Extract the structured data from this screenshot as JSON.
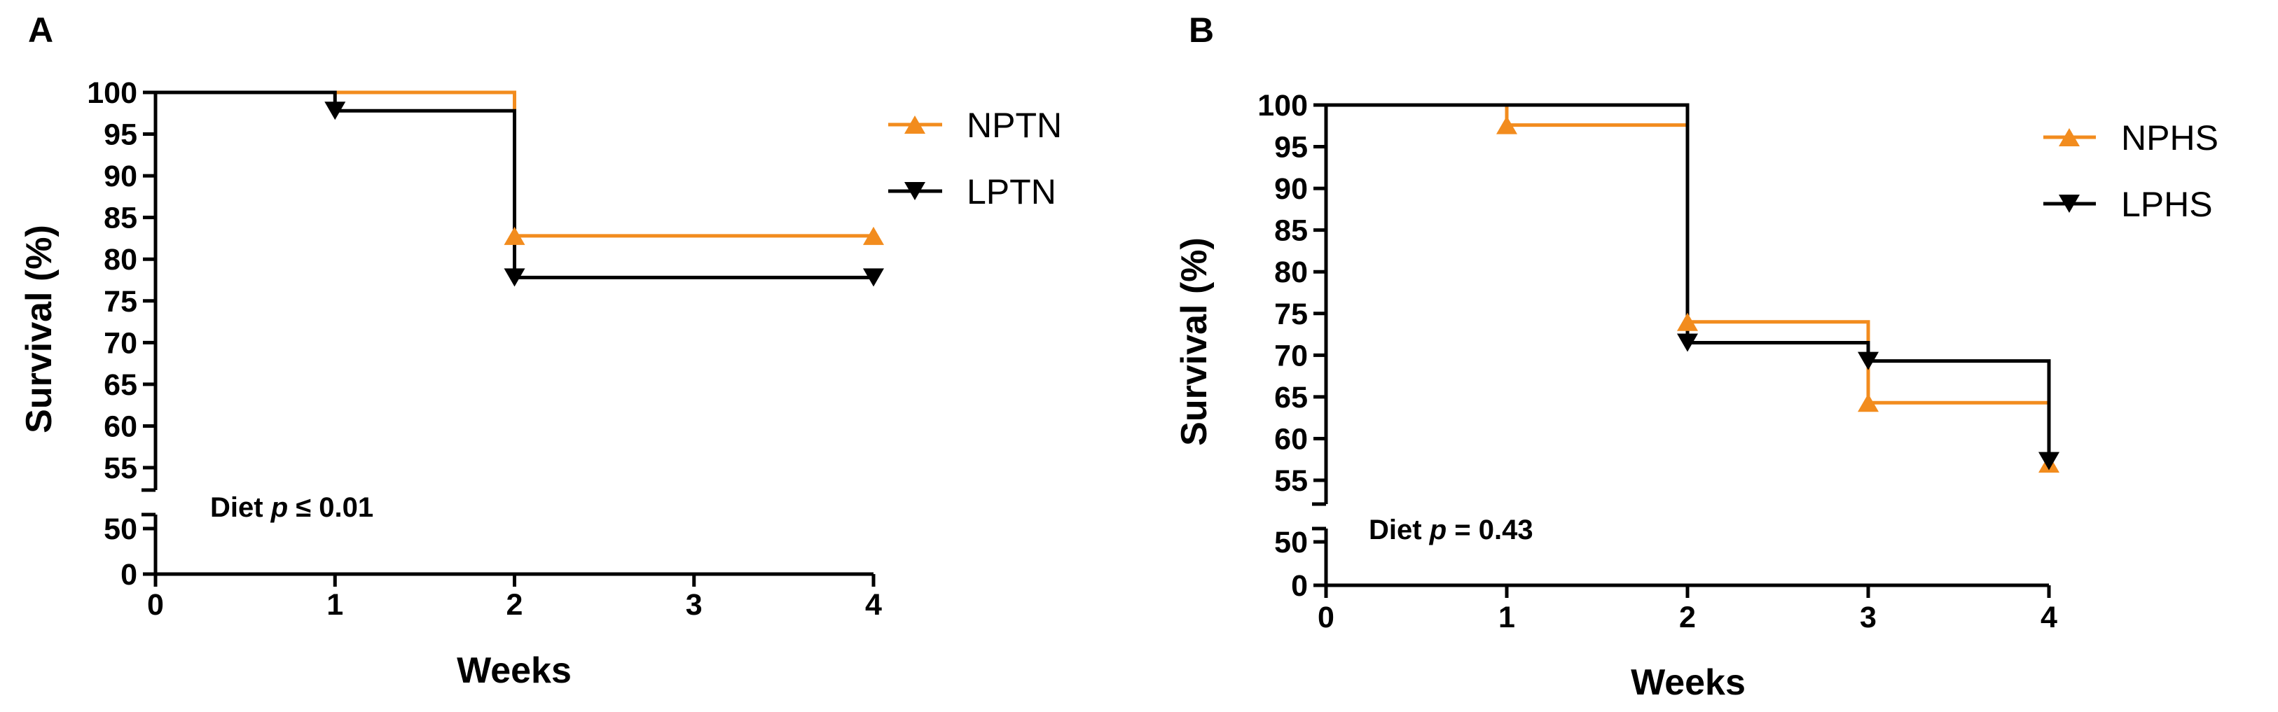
{
  "chart_data": [
    {
      "type": "line",
      "subtype": "kaplan-meier-step",
      "panel_label": "A",
      "xlabel": "Weeks",
      "ylabel": "Survival (%)",
      "xlim": [
        0,
        4
      ],
      "x_ticks": [
        "0",
        "1",
        "2",
        "3",
        "4"
      ],
      "y_ticks_upper": [
        "55",
        "60",
        "65",
        "70",
        "75",
        "80",
        "85",
        "90",
        "95",
        "100"
      ],
      "y_ticks_lower": [
        "0",
        "50"
      ],
      "y_axis_break": [
        50,
        53
      ],
      "annotation": {
        "prefix": "Diet ",
        "var": "p",
        "suffix": " ≤ 0.01"
      },
      "legend_position": "right",
      "series": [
        {
          "name": "NPTN",
          "color": "#F28C1E",
          "marker": "triangle-up",
          "steps": [
            [
              0,
              100
            ],
            [
              2,
              82.8
            ],
            [
              4,
              82.8
            ]
          ],
          "markers": [
            [
              2,
              82.8
            ],
            [
              4,
              82.8
            ]
          ]
        },
        {
          "name": "LPTN",
          "color": "#000000",
          "marker": "triangle-down",
          "steps": [
            [
              0,
              100
            ],
            [
              1,
              97.8
            ],
            [
              2,
              77.8
            ],
            [
              4,
              77.8
            ]
          ],
          "markers": [
            [
              1,
              97.8
            ],
            [
              2,
              77.8
            ],
            [
              4,
              77.8
            ]
          ]
        }
      ]
    },
    {
      "type": "line",
      "subtype": "kaplan-meier-step",
      "panel_label": "B",
      "xlabel": "Weeks",
      "ylabel": "Survival (%)",
      "xlim": [
        0,
        4
      ],
      "x_ticks": [
        "0",
        "1",
        "2",
        "3",
        "4"
      ],
      "y_ticks_upper": [
        "55",
        "60",
        "65",
        "70",
        "75",
        "80",
        "85",
        "90",
        "95",
        "100"
      ],
      "y_ticks_lower": [
        "0",
        "50"
      ],
      "y_axis_break": [
        50,
        53
      ],
      "annotation": {
        "prefix": "Diet ",
        "var": "p",
        "suffix": " = 0.43"
      },
      "legend_position": "right",
      "series": [
        {
          "name": "NPHS",
          "color": "#F28C1E",
          "marker": "triangle-up",
          "steps": [
            [
              0,
              100
            ],
            [
              1,
              97.6
            ],
            [
              2,
              74
            ],
            [
              3,
              64.3
            ],
            [
              4,
              57
            ]
          ],
          "markers": [
            [
              1,
              97.6
            ],
            [
              2,
              74
            ],
            [
              3,
              64.3
            ],
            [
              4,
              57
            ]
          ]
        },
        {
          "name": "LPHS",
          "color": "#000000",
          "marker": "triangle-down",
          "steps": [
            [
              0,
              100
            ],
            [
              2,
              71.5
            ],
            [
              3,
              69.3
            ],
            [
              4,
              57.3
            ]
          ],
          "markers": [
            [
              2,
              71.5
            ],
            [
              3,
              69.3
            ],
            [
              4,
              57.3
            ]
          ]
        }
      ]
    }
  ]
}
